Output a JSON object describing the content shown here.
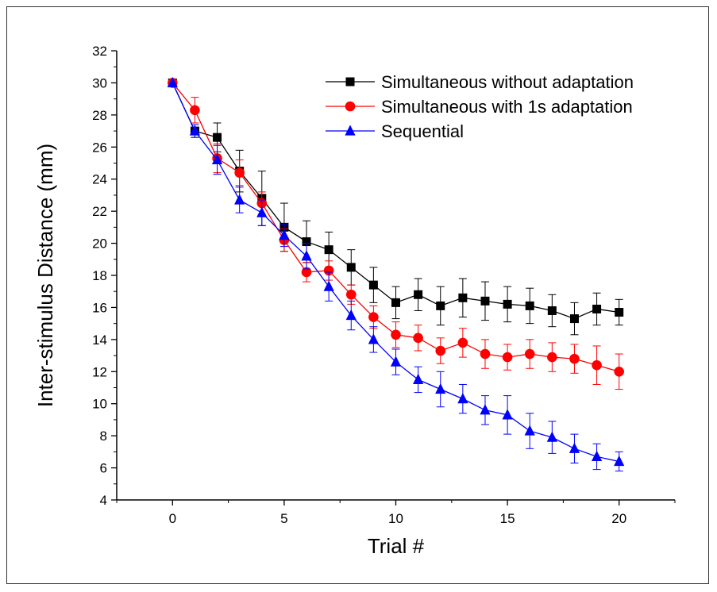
{
  "chart_data": {
    "type": "line",
    "xlabel": "Trial #",
    "ylabel": "Inter-stimulus Distance (mm)",
    "xlim": [
      -2.5,
      22.5
    ],
    "ylim": [
      4,
      32
    ],
    "xticks": [
      0,
      5,
      10,
      15,
      20
    ],
    "yticks": [
      4,
      6,
      8,
      10,
      12,
      14,
      16,
      18,
      20,
      22,
      24,
      26,
      28,
      30,
      32
    ],
    "x": [
      0,
      1,
      2,
      3,
      4,
      5,
      6,
      7,
      8,
      9,
      10,
      11,
      12,
      13,
      14,
      15,
      16,
      17,
      18,
      19,
      20
    ],
    "legend_position": "top-right",
    "series": [
      {
        "name": "Simultaneous without adaptation",
        "color": "#000000",
        "marker": "square",
        "values": [
          30.0,
          27.0,
          26.6,
          24.5,
          22.8,
          21.0,
          20.1,
          19.6,
          18.5,
          17.4,
          16.3,
          16.8,
          16.1,
          16.6,
          16.4,
          16.2,
          16.1,
          15.8,
          15.3,
          15.9,
          15.7
        ],
        "errors": [
          0.0,
          0.4,
          0.9,
          1.3,
          1.7,
          1.5,
          1.3,
          1.1,
          1.1,
          1.1,
          1.0,
          1.0,
          1.2,
          1.2,
          1.2,
          1.1,
          1.1,
          1.0,
          1.0,
          1.0,
          0.8
        ]
      },
      {
        "name": "Simultaneous with 1s adaptation",
        "color": "#ff0000",
        "marker": "circle",
        "values": [
          30.0,
          28.3,
          25.3,
          24.4,
          22.5,
          20.2,
          18.2,
          18.3,
          16.8,
          15.4,
          14.3,
          14.1,
          13.3,
          13.8,
          13.1,
          12.9,
          13.1,
          12.9,
          12.8,
          12.4,
          12.0
        ],
        "errors": [
          0.0,
          0.8,
          0.9,
          0.8,
          0.7,
          0.7,
          0.6,
          0.6,
          0.6,
          0.7,
          0.8,
          0.8,
          0.8,
          0.9,
          0.9,
          0.8,
          0.9,
          0.9,
          0.9,
          1.2,
          1.1
        ]
      },
      {
        "name": "Sequential",
        "color": "#0000ff",
        "marker": "triangle",
        "values": [
          30.0,
          27.0,
          25.2,
          22.7,
          21.9,
          20.5,
          19.2,
          17.3,
          15.5,
          14.0,
          12.6,
          11.5,
          10.9,
          10.3,
          9.6,
          9.3,
          8.3,
          7.9,
          7.2,
          6.7,
          6.4
        ],
        "errors": [
          0.0,
          0.4,
          0.9,
          0.8,
          0.8,
          0.7,
          0.8,
          0.9,
          0.9,
          0.8,
          0.8,
          0.8,
          1.1,
          0.9,
          0.9,
          1.2,
          1.1,
          1.0,
          0.9,
          0.8,
          0.6
        ]
      }
    ]
  }
}
